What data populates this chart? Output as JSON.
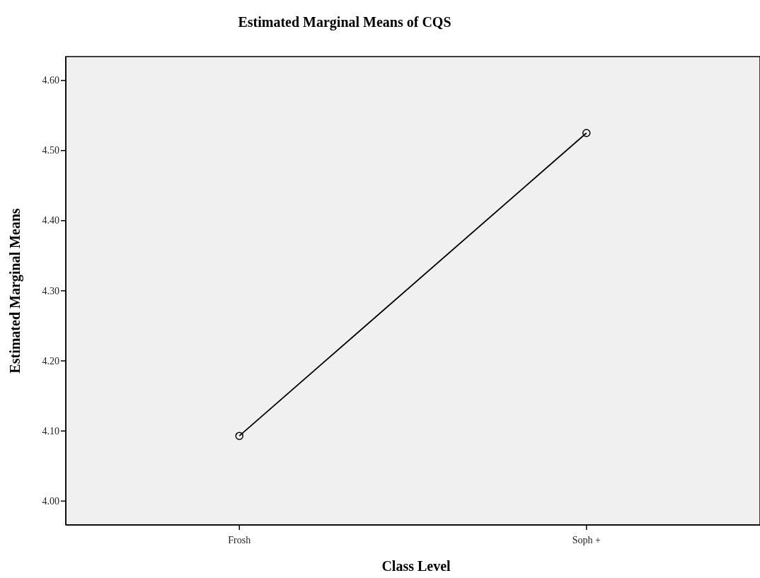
{
  "chart_data": {
    "type": "line",
    "title": "Estimated Marginal Means of CQS",
    "xlabel": "Class Level",
    "ylabel": "Estimated Marginal Means",
    "categories": [
      "Frosh",
      "Soph +"
    ],
    "series": [
      {
        "color": "#000000",
        "values": [
          4.093,
          4.525
        ]
      }
    ],
    "ylim": [
      3.966,
      4.634
    ],
    "yticks": [
      {
        "value": 4.0,
        "label": "4.00"
      },
      {
        "value": 4.1,
        "label": "4.10"
      },
      {
        "value": 4.2,
        "label": "4.20"
      },
      {
        "value": 4.3,
        "label": "4.30"
      },
      {
        "value": 4.4,
        "label": "4.40"
      },
      {
        "value": 4.5,
        "label": "4.50"
      },
      {
        "value": 4.6,
        "label": "4.60"
      }
    ],
    "marker": "circle"
  }
}
